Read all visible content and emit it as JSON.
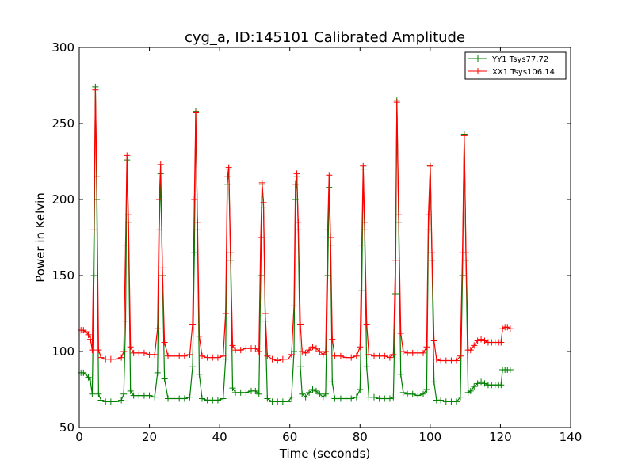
{
  "chart_data": {
    "type": "line",
    "title": "cyg_a, ID:145101 Calibrated Amplitude",
    "xlabel": "Time (seconds)",
    "ylabel": "Power in Kelvin",
    "xlim": [
      0,
      140
    ],
    "ylim": [
      50,
      300
    ],
    "xticks": [
      0,
      20,
      40,
      60,
      80,
      100,
      120,
      140
    ],
    "yticks": [
      50,
      100,
      150,
      200,
      250,
      300
    ],
    "grid": false,
    "legend_position": "top-right",
    "series": [
      {
        "name": "YY1 Tsys77.72",
        "color": "#008000",
        "marker": "+",
        "points": [
          [
            0.5,
            86
          ],
          [
            1.2,
            86
          ],
          [
            1.9,
            85
          ],
          [
            2.6,
            83
          ],
          [
            3.2,
            80
          ],
          [
            3.7,
            72
          ],
          [
            4.2,
            150
          ],
          [
            4.6,
            274
          ],
          [
            5.0,
            200
          ],
          [
            5.5,
            72
          ],
          [
            6.2,
            68
          ],
          [
            7.5,
            67
          ],
          [
            9,
            67
          ],
          [
            10.5,
            67
          ],
          [
            12,
            68
          ],
          [
            12.7,
            72
          ],
          [
            13.2,
            120
          ],
          [
            13.6,
            226
          ],
          [
            14.0,
            185
          ],
          [
            14.6,
            74
          ],
          [
            15.5,
            71
          ],
          [
            17,
            71
          ],
          [
            18.5,
            71
          ],
          [
            20,
            71
          ],
          [
            21.5,
            70
          ],
          [
            22.3,
            86
          ],
          [
            22.8,
            180
          ],
          [
            23.2,
            217
          ],
          [
            23.7,
            150
          ],
          [
            24.3,
            82
          ],
          [
            25.3,
            69
          ],
          [
            27,
            69
          ],
          [
            28.5,
            69
          ],
          [
            30,
            69
          ],
          [
            31.5,
            70
          ],
          [
            32.3,
            90
          ],
          [
            32.8,
            165
          ],
          [
            33.2,
            258
          ],
          [
            33.7,
            180
          ],
          [
            34.2,
            85
          ],
          [
            35,
            69
          ],
          [
            36.5,
            68
          ],
          [
            38,
            68
          ],
          [
            39.5,
            68
          ],
          [
            41,
            69
          ],
          [
            41.7,
            95
          ],
          [
            42.2,
            210
          ],
          [
            42.6,
            220
          ],
          [
            43.1,
            160
          ],
          [
            43.7,
            76
          ],
          [
            44.5,
            73
          ],
          [
            46,
            73
          ],
          [
            47.5,
            73
          ],
          [
            49,
            74
          ],
          [
            50.2,
            74
          ],
          [
            51.2,
            72
          ],
          [
            51.7,
            150
          ],
          [
            52.1,
            210
          ],
          [
            52.5,
            195
          ],
          [
            53,
            120
          ],
          [
            53.6,
            69
          ],
          [
            55,
            67
          ],
          [
            56.5,
            67
          ],
          [
            58,
            67
          ],
          [
            59.5,
            67
          ],
          [
            60.5,
            70
          ],
          [
            61.2,
            100
          ],
          [
            61.6,
            200
          ],
          [
            62,
            215
          ],
          [
            62.4,
            180
          ],
          [
            63,
            90
          ],
          [
            63.5,
            72
          ],
          [
            64.5,
            70
          ],
          [
            65.5,
            73
          ],
          [
            66.5,
            75
          ],
          [
            67.5,
            74
          ],
          [
            68.5,
            72
          ],
          [
            69.5,
            70
          ],
          [
            70.2,
            72
          ],
          [
            70.8,
            150
          ],
          [
            71.2,
            208
          ],
          [
            71.6,
            170
          ],
          [
            72.1,
            80
          ],
          [
            72.8,
            69
          ],
          [
            74.5,
            69
          ],
          [
            76,
            69
          ],
          [
            77.5,
            69
          ],
          [
            79,
            70
          ],
          [
            80,
            75
          ],
          [
            80.5,
            140
          ],
          [
            80.9,
            220
          ],
          [
            81.3,
            180
          ],
          [
            81.9,
            90
          ],
          [
            82.5,
            70
          ],
          [
            84,
            70
          ],
          [
            85.5,
            69
          ],
          [
            87,
            69
          ],
          [
            88.5,
            69
          ],
          [
            89.5,
            70
          ],
          [
            90.1,
            138
          ],
          [
            90.5,
            265
          ],
          [
            91,
            185
          ],
          [
            91.6,
            85
          ],
          [
            92.3,
            73
          ],
          [
            93.5,
            72
          ],
          [
            95,
            72
          ],
          [
            96.5,
            71
          ],
          [
            98,
            72
          ],
          [
            99,
            75
          ],
          [
            99.5,
            180
          ],
          [
            100,
            222
          ],
          [
            100.5,
            160
          ],
          [
            101.1,
            80
          ],
          [
            101.8,
            68
          ],
          [
            103,
            68
          ],
          [
            104.5,
            67
          ],
          [
            106,
            67
          ],
          [
            107.5,
            67
          ],
          [
            108.6,
            70
          ],
          [
            109.2,
            150
          ],
          [
            109.7,
            243
          ],
          [
            110.2,
            160
          ],
          [
            110.8,
            73
          ],
          [
            111.5,
            74
          ],
          [
            112.5,
            77
          ],
          [
            113.5,
            79
          ],
          [
            114.5,
            80
          ],
          [
            115.5,
            79
          ],
          [
            116.5,
            78
          ],
          [
            117.5,
            78
          ],
          [
            118.5,
            78
          ],
          [
            119.5,
            78
          ],
          [
            120.2,
            78
          ],
          [
            120.6,
            88
          ],
          [
            121.3,
            88
          ],
          [
            122,
            88
          ],
          [
            122.8,
            88
          ]
        ]
      },
      {
        "name": "XX1 Tsys106.14",
        "color": "#ff0000",
        "marker": "+",
        "points": [
          [
            0.5,
            114
          ],
          [
            1.2,
            114
          ],
          [
            1.9,
            113
          ],
          [
            2.6,
            111
          ],
          [
            3.2,
            108
          ],
          [
            3.7,
            101
          ],
          [
            4.2,
            180
          ],
          [
            4.6,
            272
          ],
          [
            5.0,
            215
          ],
          [
            5.5,
            101
          ],
          [
            6.2,
            96
          ],
          [
            7.5,
            95
          ],
          [
            9,
            95
          ],
          [
            10.5,
            95
          ],
          [
            12,
            96
          ],
          [
            12.7,
            100
          ],
          [
            13.2,
            170
          ],
          [
            13.6,
            229
          ],
          [
            14.0,
            190
          ],
          [
            14.6,
            103
          ],
          [
            15.5,
            99
          ],
          [
            17,
            99
          ],
          [
            18.5,
            99
          ],
          [
            20,
            98
          ],
          [
            21.5,
            98
          ],
          [
            22.3,
            115
          ],
          [
            22.8,
            200
          ],
          [
            23.2,
            223
          ],
          [
            23.7,
            155
          ],
          [
            24.3,
            106
          ],
          [
            25.3,
            97
          ],
          [
            27,
            97
          ],
          [
            28.5,
            97
          ],
          [
            30,
            97
          ],
          [
            31.5,
            98
          ],
          [
            32.3,
            118
          ],
          [
            32.8,
            200
          ],
          [
            33.2,
            257
          ],
          [
            33.7,
            185
          ],
          [
            34.2,
            110
          ],
          [
            35,
            97
          ],
          [
            36.5,
            96
          ],
          [
            38,
            96
          ],
          [
            39.5,
            96
          ],
          [
            41,
            97
          ],
          [
            41.7,
            125
          ],
          [
            42.2,
            215
          ],
          [
            42.6,
            221
          ],
          [
            43.1,
            165
          ],
          [
            43.7,
            104
          ],
          [
            44.5,
            101
          ],
          [
            46,
            101
          ],
          [
            47.5,
            102
          ],
          [
            49,
            102
          ],
          [
            50.2,
            102
          ],
          [
            51.2,
            100
          ],
          [
            51.7,
            175
          ],
          [
            52.1,
            211
          ],
          [
            52.5,
            198
          ],
          [
            53,
            125
          ],
          [
            53.6,
            97
          ],
          [
            55,
            95
          ],
          [
            56.5,
            94
          ],
          [
            58,
            95
          ],
          [
            59.5,
            95
          ],
          [
            60.5,
            98
          ],
          [
            61.2,
            130
          ],
          [
            61.6,
            210
          ],
          [
            62,
            217
          ],
          [
            62.4,
            185
          ],
          [
            63,
            118
          ],
          [
            63.5,
            100
          ],
          [
            64.5,
            99
          ],
          [
            65.5,
            101
          ],
          [
            66.5,
            103
          ],
          [
            67.5,
            102
          ],
          [
            68.5,
            100
          ],
          [
            69.5,
            98
          ],
          [
            70.2,
            100
          ],
          [
            70.8,
            180
          ],
          [
            71.2,
            216
          ],
          [
            71.6,
            175
          ],
          [
            72.1,
            108
          ],
          [
            72.8,
            97
          ],
          [
            74.5,
            97
          ],
          [
            76,
            96
          ],
          [
            77.5,
            96
          ],
          [
            79,
            97
          ],
          [
            80,
            103
          ],
          [
            80.5,
            170
          ],
          [
            80.9,
            222
          ],
          [
            81.3,
            185
          ],
          [
            81.9,
            118
          ],
          [
            82.5,
            98
          ],
          [
            84,
            97
          ],
          [
            85.5,
            97
          ],
          [
            87,
            97
          ],
          [
            88.5,
            96
          ],
          [
            89.5,
            98
          ],
          [
            90.1,
            160
          ],
          [
            90.5,
            264
          ],
          [
            91,
            190
          ],
          [
            91.6,
            112
          ],
          [
            92.3,
            100
          ],
          [
            93.5,
            99
          ],
          [
            95,
            99
          ],
          [
            96.5,
            99
          ],
          [
            98,
            99
          ],
          [
            99,
            103
          ],
          [
            99.5,
            190
          ],
          [
            100,
            222
          ],
          [
            100.5,
            165
          ],
          [
            101.1,
            107
          ],
          [
            101.8,
            95
          ],
          [
            103,
            94
          ],
          [
            104.5,
            94
          ],
          [
            106,
            94
          ],
          [
            107.5,
            94
          ],
          [
            108.6,
            97
          ],
          [
            109.2,
            165
          ],
          [
            109.7,
            242
          ],
          [
            110.2,
            165
          ],
          [
            110.8,
            101
          ],
          [
            111.5,
            101
          ],
          [
            112.5,
            104
          ],
          [
            113.5,
            107
          ],
          [
            114.5,
            108
          ],
          [
            115.5,
            107
          ],
          [
            116.5,
            106
          ],
          [
            117.5,
            106
          ],
          [
            118.5,
            106
          ],
          [
            119.5,
            106
          ],
          [
            120.2,
            106
          ],
          [
            120.6,
            115
          ],
          [
            121.3,
            116
          ],
          [
            122,
            116
          ],
          [
            122.8,
            115
          ]
        ]
      }
    ]
  }
}
